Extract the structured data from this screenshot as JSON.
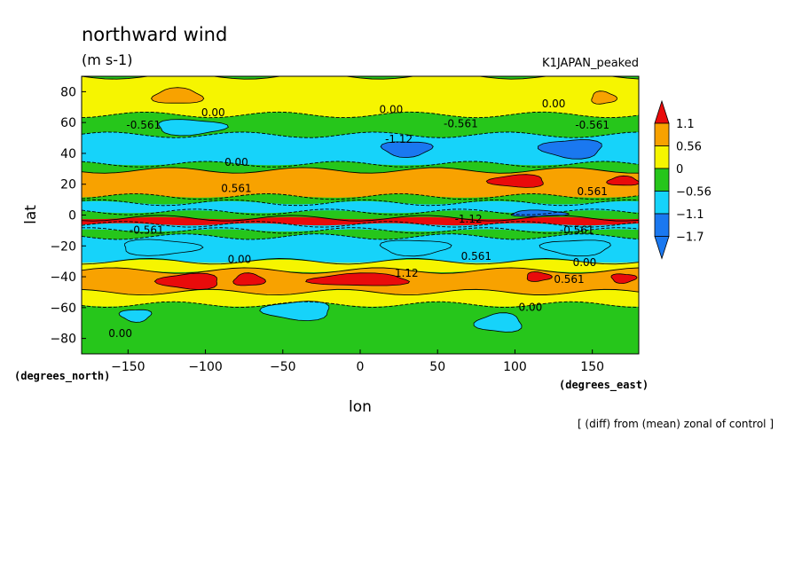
{
  "chart_data": {
    "type": "heatmap",
    "title": "northward wind",
    "units": "(m s-1)",
    "experiment": "K1JAPAN_peaked",
    "xlabel": "lon",
    "ylabel": "lat",
    "x_unit_label": "(degrees_east)",
    "y_unit_label": "(degrees_north)",
    "footnote": "[ (diff) from (mean) zonal of control ]",
    "xlim": [
      -180,
      180
    ],
    "ylim": [
      -90,
      90
    ],
    "x_ticks": [
      {
        "value": -150,
        "label": "−150"
      },
      {
        "value": -100,
        "label": "−100"
      },
      {
        "value": -50,
        "label": "−50"
      },
      {
        "value": 0,
        "label": "0"
      },
      {
        "value": 50,
        "label": "50"
      },
      {
        "value": 100,
        "label": "100"
      },
      {
        "value": 150,
        "label": "150"
      }
    ],
    "y_ticks": [
      {
        "value": -80,
        "label": "−80"
      },
      {
        "value": -60,
        "label": "−60"
      },
      {
        "value": -40,
        "label": "−40"
      },
      {
        "value": -20,
        "label": "−20"
      },
      {
        "value": 0,
        "label": "0"
      },
      {
        "value": 20,
        "label": "20"
      },
      {
        "value": 40,
        "label": "40"
      },
      {
        "value": 60,
        "label": "60"
      },
      {
        "value": 80,
        "label": "80"
      }
    ],
    "color_levels": [
      -1.7,
      -1.1,
      -0.56,
      0,
      0.56,
      1.1
    ],
    "color_labels": [
      "−1.7",
      "−1.1",
      "−0.56",
      "0",
      "0.56",
      "1.1"
    ],
    "colors": [
      "#1a78f0",
      "#16d3fa",
      "#26c61b",
      "#f6f500",
      "#f8a200",
      "#e90b0b"
    ],
    "colors_note": "bins: <-1.7, -1.7..-1.1, -1.1..-0.56, -0.56..0, 0..0.56, 0.56..1.1, >1.1",
    "bin_colors": [
      "#1a78f0",
      "#1a78f0",
      "#16d3fa",
      "#26c61b",
      "#f6f500",
      "#f8a200",
      "#e90b0b"
    ],
    "contour_labels": [
      "0.00",
      "-0.561",
      "-1.12",
      "0.561",
      "1.12"
    ],
    "bands": [
      {
        "lat_range": [
          65,
          90
        ],
        "value": 0.2
      },
      {
        "lat_range": [
          52,
          65
        ],
        "value": -0.3
      },
      {
        "lat_range": [
          33,
          52
        ],
        "value": -0.9
      },
      {
        "lat_range": [
          29,
          33
        ],
        "value": -0.2
      },
      {
        "lat_range": [
          12,
          29
        ],
        "value": 0.7
      },
      {
        "lat_range": [
          8,
          12
        ],
        "value": -0.2
      },
      {
        "lat_range": [
          2,
          8
        ],
        "value": -1.1
      },
      {
        "lat_range": [
          -2,
          2
        ],
        "value": -0.4
      },
      {
        "lat_range": [
          -6,
          -2
        ],
        "value": 1.1
      },
      {
        "lat_range": [
          -10,
          -6
        ],
        "value": -0.6
      },
      {
        "lat_range": [
          -14,
          -10
        ],
        "value": -0.3
      },
      {
        "lat_range": [
          -30,
          -14
        ],
        "value": -0.8
      },
      {
        "lat_range": [
          -36,
          -30
        ],
        "value": 0.1
      },
      {
        "lat_range": [
          -50,
          -36
        ],
        "value": 0.9
      },
      {
        "lat_range": [
          -58,
          -50
        ],
        "value": 0.3
      },
      {
        "lat_range": [
          -90,
          -58
        ],
        "value": -0.3
      }
    ],
    "features": [
      {
        "lon": -118,
        "lat": 77,
        "value": 0.7,
        "dlon": 16,
        "dlat": 5
      },
      {
        "lon": 157,
        "lat": 76,
        "value": 0.7,
        "dlon": 8,
        "dlat": 4
      },
      {
        "lon": -110,
        "lat": 57,
        "value": -0.9,
        "dlon": 22,
        "dlat": 5
      },
      {
        "lon": 30,
        "lat": 43,
        "value": -1.4,
        "dlon": 16,
        "dlat": 5
      },
      {
        "lon": 137,
        "lat": 43,
        "value": -1.6,
        "dlon": 20,
        "dlat": 6
      },
      {
        "lon": 102,
        "lat": 22,
        "value": 1.3,
        "dlon": 18,
        "dlat": 4
      },
      {
        "lon": 170,
        "lat": 22,
        "value": 1.2,
        "dlon": 10,
        "dlat": 3
      },
      {
        "lon": 115,
        "lat": 1,
        "value": -1.4,
        "dlon": 18,
        "dlat": 2
      },
      {
        "lon": -130,
        "lat": -21,
        "value": -0.8,
        "dlon": 25,
        "dlat": 5
      },
      {
        "lon": 35,
        "lat": -21,
        "value": -1.0,
        "dlon": 22,
        "dlat": 5
      },
      {
        "lon": 140,
        "lat": -21,
        "value": -0.9,
        "dlon": 22,
        "dlat": 5
      },
      {
        "lon": -110,
        "lat": -43,
        "value": 1.3,
        "dlon": 20,
        "dlat": 5
      },
      {
        "lon": 0,
        "lat": -42,
        "value": 1.3,
        "dlon": 32,
        "dlat": 4
      },
      {
        "lon": -72,
        "lat": -42,
        "value": 1.2,
        "dlon": 10,
        "dlat": 4
      },
      {
        "lon": 115,
        "lat": -40,
        "value": 1.2,
        "dlon": 8,
        "dlat": 3
      },
      {
        "lon": 170,
        "lat": -41,
        "value": 1.2,
        "dlon": 8,
        "dlat": 3
      },
      {
        "lon": -145,
        "lat": -65,
        "value": -0.9,
        "dlon": 10,
        "dlat": 4
      },
      {
        "lon": -40,
        "lat": -62,
        "value": -0.9,
        "dlon": 22,
        "dlat": 6
      },
      {
        "lon": 90,
        "lat": -70,
        "value": -0.9,
        "dlon": 15,
        "dlat": 6
      }
    ],
    "grid": false,
    "legend_position": "right"
  }
}
